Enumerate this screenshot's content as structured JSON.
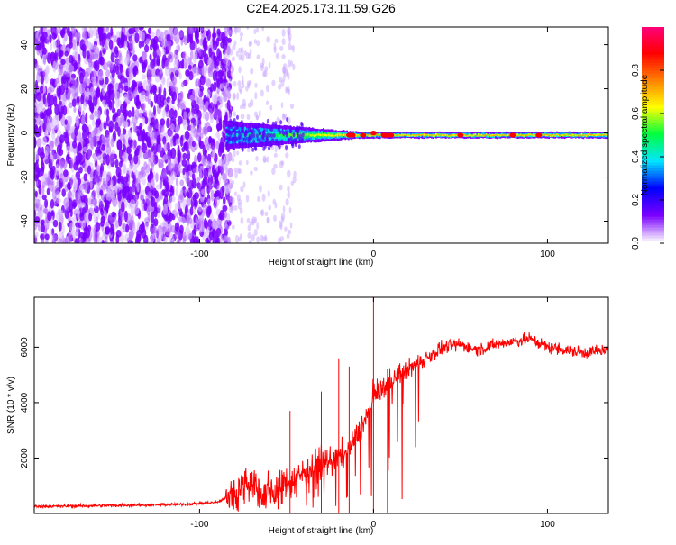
{
  "figure_title": "C2E4.2025.173.11.59.G26",
  "colorbar": {
    "label": "Normalized spectral amplitude",
    "ticks": [
      "0.0",
      "0.2",
      "0.4",
      "0.6",
      "0.8"
    ],
    "tick_values": [
      0.0,
      0.2,
      0.4,
      0.6,
      0.8
    ],
    "range": [
      0,
      1
    ],
    "colormap": [
      "#ffffff",
      "#7a00ff",
      "#0000ff",
      "#00e5ff",
      "#00ff40",
      "#ffff00",
      "#ff8000",
      "#ff0000",
      "#ff0080"
    ]
  },
  "chart_data": [
    {
      "type": "heatmap",
      "xlabel": "Height of straight line (km)",
      "ylabel": "Frequency (Hz)",
      "xlim": [
        -195,
        135
      ],
      "ylim": [
        -50,
        48
      ],
      "x_ticks": [
        "-100",
        "0",
        "100"
      ],
      "x_tick_values": [
        -100,
        0,
        100
      ],
      "y_ticks": [
        "-40",
        "-20",
        "0",
        "20",
        "40"
      ],
      "y_tick_values": [
        -40,
        -20,
        0,
        20,
        40
      ],
      "noise_region_x": [
        -195,
        -85
      ],
      "signal_start_x": -85,
      "signal_center_frequency": -1,
      "peak_points": [
        {
          "x": -14,
          "y": -1
        },
        {
          "x": -12,
          "y": -1
        },
        {
          "x": -6,
          "y": -1
        },
        {
          "x": 0,
          "y": 0
        },
        {
          "x": 6,
          "y": -1
        },
        {
          "x": 8,
          "y": -1
        },
        {
          "x": 10,
          "y": -1
        },
        {
          "x": 50,
          "y": -1
        },
        {
          "x": 80,
          "y": -1
        },
        {
          "x": 95,
          "y": -1
        }
      ]
    },
    {
      "type": "line",
      "xlabel": "Height of straight line (km)",
      "ylabel": "SNR (10 * v/v)",
      "xlim": [
        -195,
        135
      ],
      "ylim": [
        0,
        7800
      ],
      "x_ticks": [
        "-100",
        "0",
        "100"
      ],
      "x_tick_values": [
        -100,
        0,
        100
      ],
      "y_ticks": [
        "2000",
        "4000",
        "6000"
      ],
      "y_tick_values": [
        2000,
        4000,
        6000
      ],
      "series_color": "#ff0000",
      "series": [
        {
          "x": [
            -195,
            -170,
            -140,
            -110,
            -90,
            -80,
            -72,
            -65,
            -55,
            -45,
            -35,
            -25,
            -15,
            -8,
            -3,
            0,
            5,
            10,
            20,
            30,
            40,
            50,
            60,
            70,
            80,
            90,
            100,
            110,
            120,
            135
          ],
          "y": [
            250,
            270,
            300,
            330,
            400,
            700,
            1300,
            800,
            900,
            1300,
            1700,
            1900,
            2200,
            3000,
            3600,
            4300,
            4500,
            4800,
            5200,
            5600,
            6000,
            6100,
            5900,
            6100,
            6200,
            6300,
            6000,
            5900,
            5800,
            5900
          ]
        }
      ],
      "spikes": [
        {
          "x": -48,
          "y": 3700
        },
        {
          "x": -30,
          "y": 4400
        },
        {
          "x": -20,
          "y": 5600
        },
        {
          "x": -14,
          "y": 5300
        },
        {
          "x": 0,
          "y": 7800
        },
        {
          "x": 8,
          "y": 5200
        }
      ]
    }
  ]
}
